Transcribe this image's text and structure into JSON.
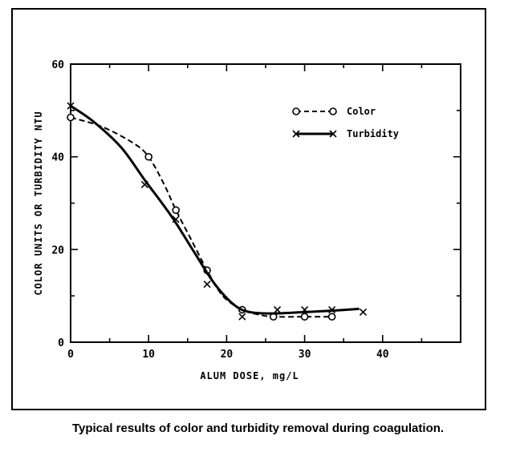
{
  "caption": "Typical results of color and turbidity removal during coagulation.",
  "chart_data": {
    "type": "line",
    "title": "",
    "xlabel": "ALUM  DOSE, mg/L",
    "ylabel": "COLOR UNITS OR TURBIDITY NTU",
    "xlim": [
      0,
      50
    ],
    "ylim": [
      0,
      60
    ],
    "x_ticks": [
      0,
      10,
      20,
      30,
      40
    ],
    "y_ticks": [
      0,
      20,
      40,
      60
    ],
    "grid": false,
    "legend_position": "top-right",
    "series": [
      {
        "name": "Color",
        "marker": "circle",
        "line_style": "dashed",
        "points": [
          [
            0,
            48.5
          ],
          [
            10,
            40
          ],
          [
            13.5,
            28.5
          ],
          [
            17.5,
            15.5
          ],
          [
            22,
            7
          ],
          [
            26,
            5.5
          ],
          [
            30,
            5.5
          ],
          [
            33.5,
            5.5
          ]
        ],
        "curve": [
          [
            0,
            48.5
          ],
          [
            4,
            46.5
          ],
          [
            8,
            43
          ],
          [
            10,
            40
          ],
          [
            12,
            34
          ],
          [
            13.5,
            28.5
          ],
          [
            15.5,
            22
          ],
          [
            17.5,
            15.5
          ],
          [
            19.5,
            10
          ],
          [
            22,
            7
          ],
          [
            24,
            6
          ],
          [
            26,
            5.5
          ],
          [
            30,
            5.5
          ],
          [
            33.5,
            5.5
          ]
        ]
      },
      {
        "name": "Turbidity",
        "marker": "x",
        "line_style": "solid",
        "points": [
          [
            0,
            51
          ],
          [
            9.5,
            34
          ],
          [
            13.5,
            26.5
          ],
          [
            17.5,
            12.5
          ],
          [
            22,
            5.5
          ],
          [
            26.5,
            7
          ],
          [
            30,
            7
          ],
          [
            33.5,
            7
          ],
          [
            37.5,
            6.5
          ]
        ],
        "curve": [
          [
            0,
            51
          ],
          [
            3,
            47.5
          ],
          [
            6.5,
            42
          ],
          [
            9.5,
            35
          ],
          [
            13,
            27
          ],
          [
            16,
            19
          ],
          [
            18.5,
            12.5
          ],
          [
            21,
            8
          ],
          [
            23,
            6.5
          ],
          [
            26,
            6.2
          ],
          [
            30,
            6.5
          ],
          [
            33.5,
            6.8
          ],
          [
            37,
            7.2
          ]
        ]
      }
    ]
  }
}
